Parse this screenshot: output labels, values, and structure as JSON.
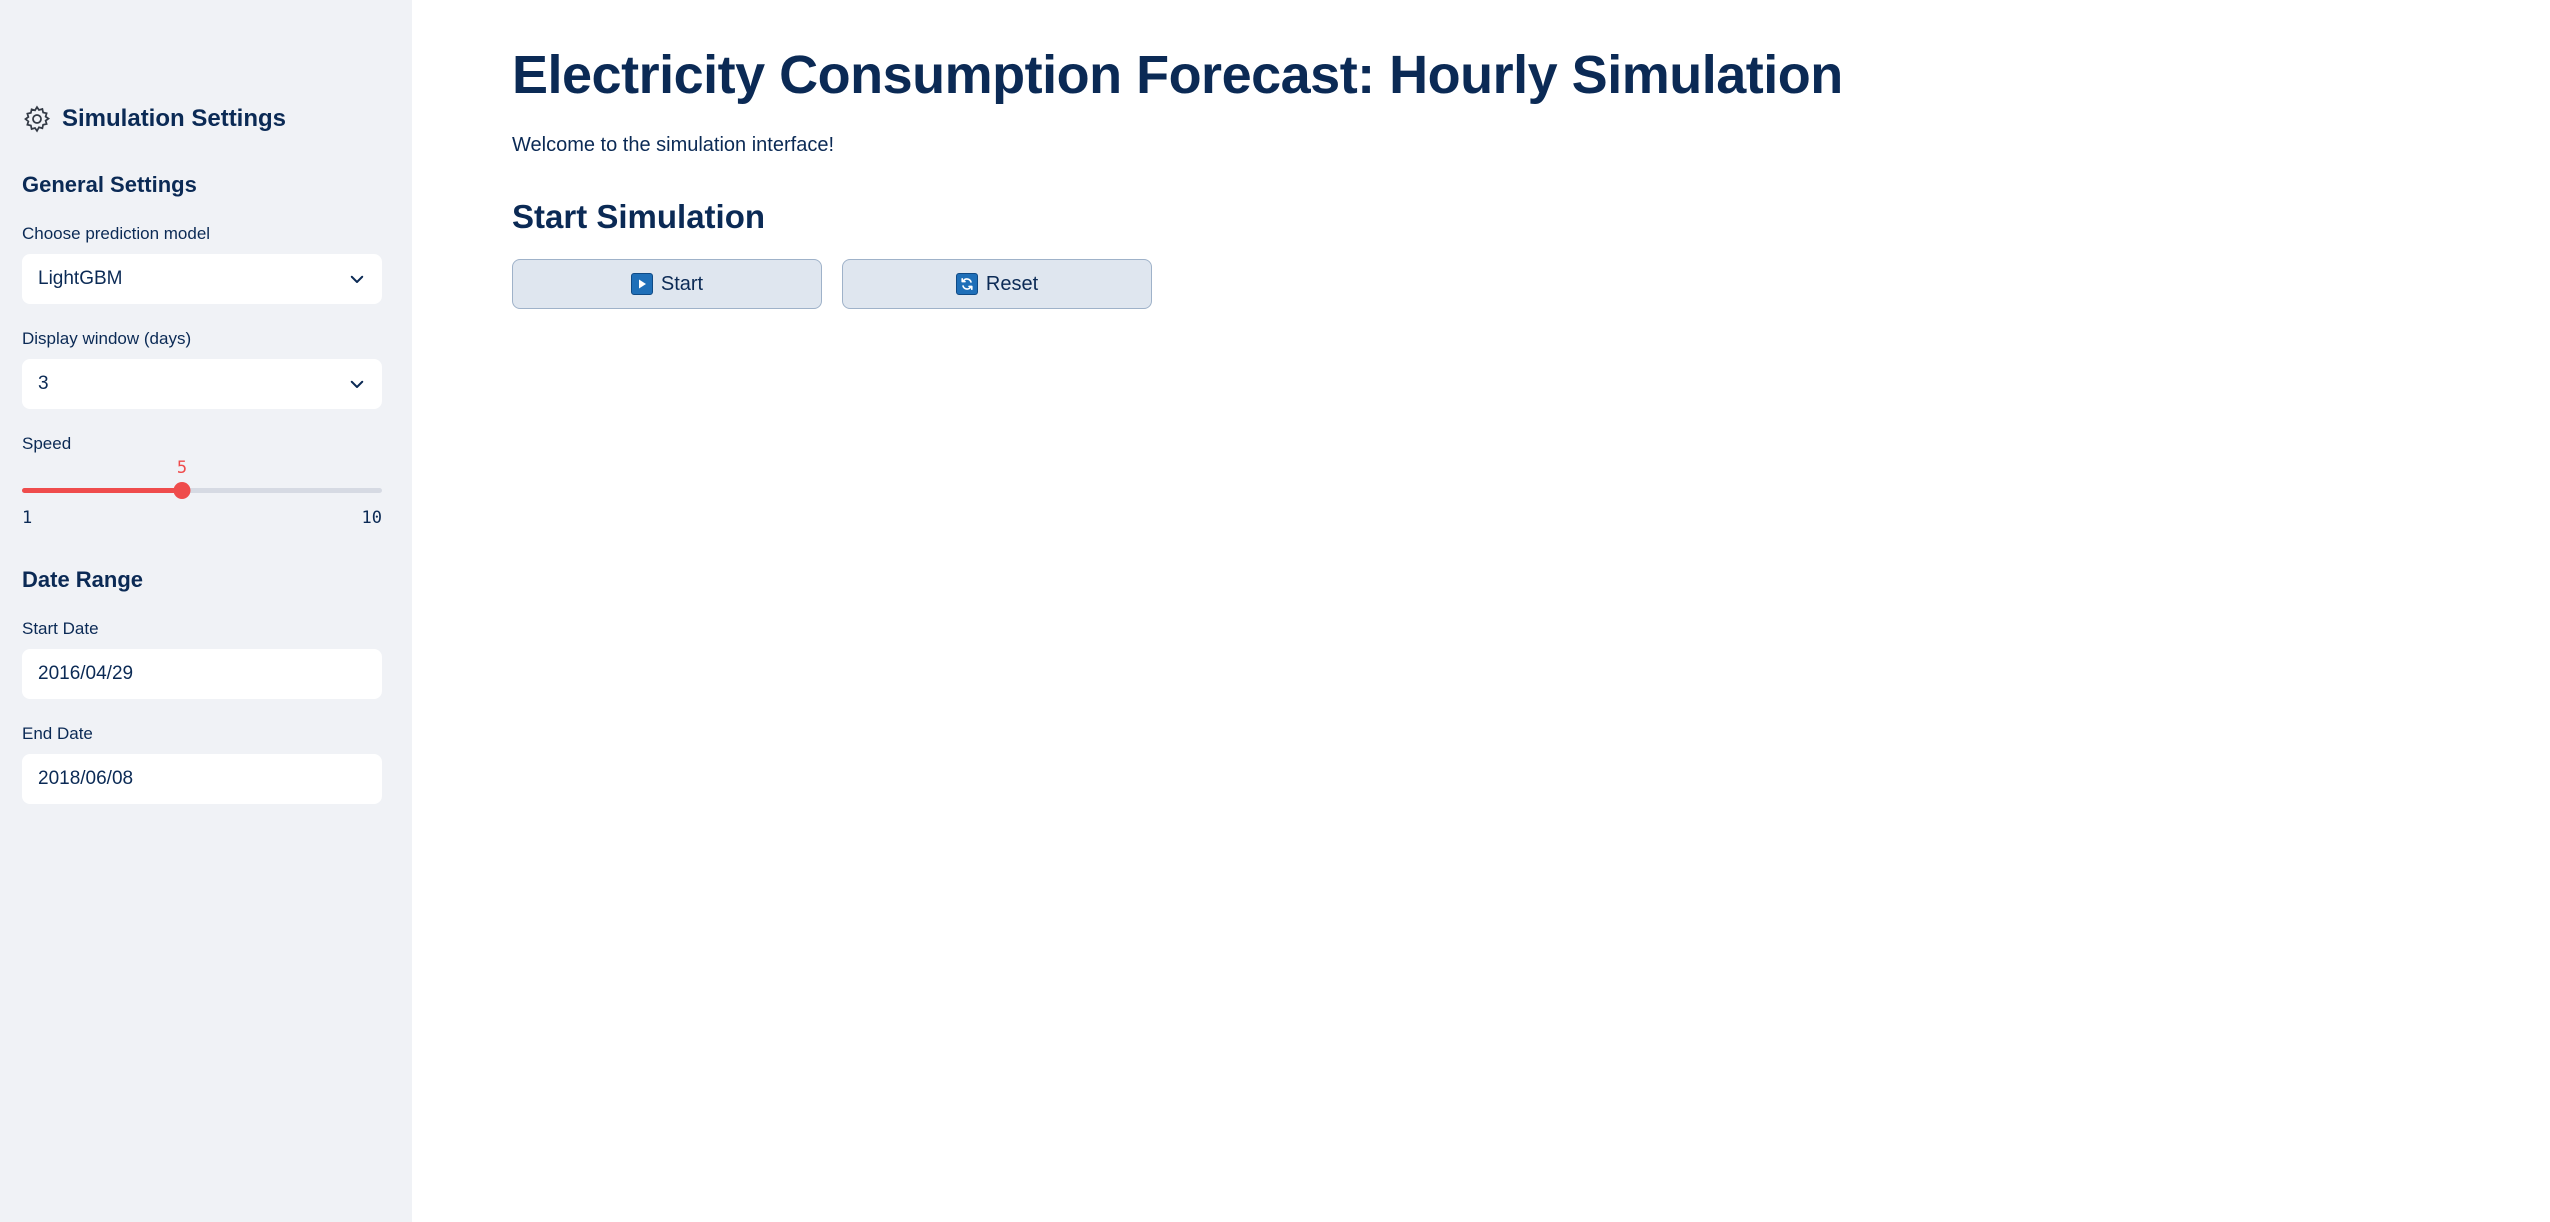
{
  "sidebar": {
    "title": "Simulation Settings",
    "general_settings": {
      "heading": "General Settings",
      "model": {
        "label": "Choose prediction model",
        "value": "LightGBM"
      },
      "window": {
        "label": "Display window (days)",
        "value": "3"
      },
      "speed": {
        "label": "Speed",
        "value": 5,
        "min": 1,
        "max": 10,
        "value_text": "5",
        "min_text": "1",
        "max_text": "10",
        "accent": "#ef4c4c"
      }
    },
    "date_range": {
      "heading": "Date Range",
      "start": {
        "label": "Start Date",
        "value": "2016/04/29"
      },
      "end": {
        "label": "End Date",
        "value": "2018/06/08"
      }
    }
  },
  "main": {
    "title": "Electricity Consumption Forecast: Hourly Simulation",
    "welcome": "Welcome to the simulation interface!",
    "section_heading": "Start Simulation",
    "buttons": {
      "start": {
        "label": "Start",
        "icon": "play-icon"
      },
      "reset": {
        "label": "Reset",
        "icon": "refresh-icon"
      }
    }
  }
}
